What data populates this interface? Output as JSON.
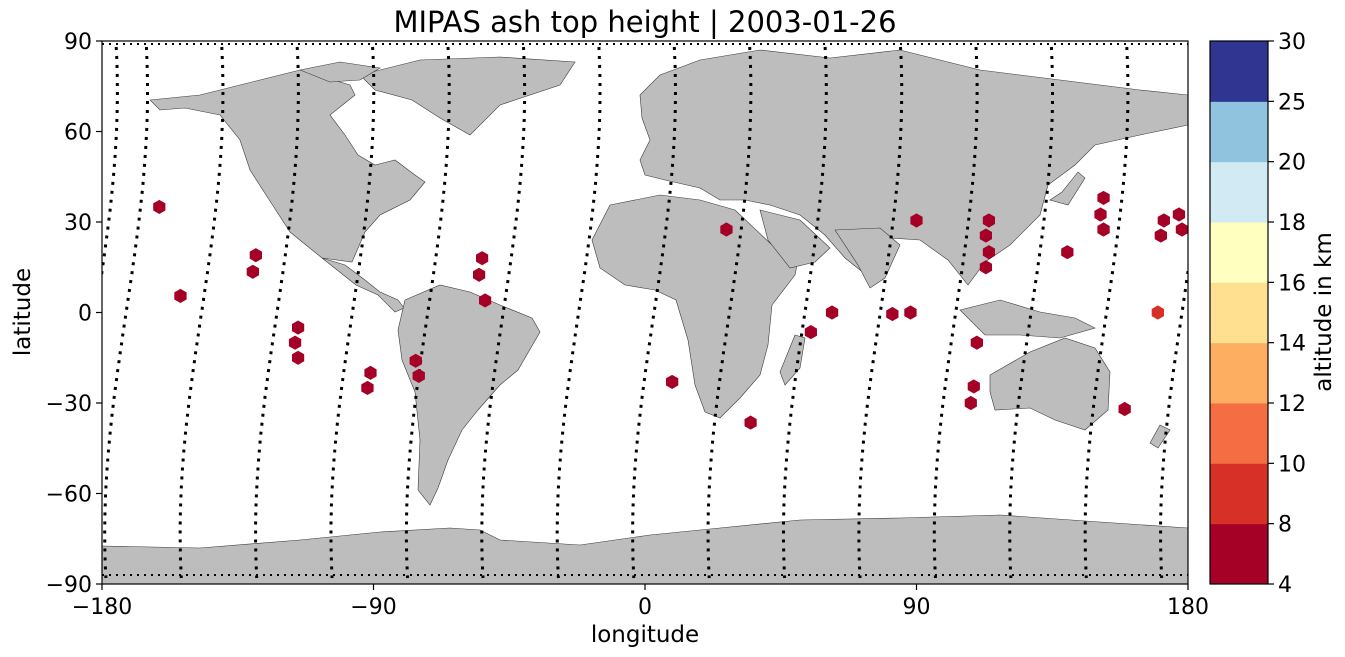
{
  "title": "MIPAS ash top height | 2003-01-26",
  "xlabel": "longitude",
  "ylabel": "latitude",
  "colorbar": {
    "label": "altitude in km",
    "ticks": [
      "4",
      "8",
      "10",
      "12",
      "14",
      "16",
      "18",
      "20",
      "25",
      "30"
    ],
    "colors": [
      "#a50026",
      "#d73027",
      "#f46d43",
      "#fdae61",
      "#fee090",
      "#ffffbf",
      "#e0f3f8",
      "#abd9e9",
      "#74add1",
      "#4575b4",
      "#313695"
    ],
    "bands": [
      {
        "from": 4,
        "to": 8,
        "color": "#a50026"
      },
      {
        "from": 8,
        "to": 10,
        "color": "#d73027"
      },
      {
        "from": 10,
        "to": 12,
        "color": "#f46d43"
      },
      {
        "from": 12,
        "to": 14,
        "color": "#fdae61"
      },
      {
        "from": 14,
        "to": 16,
        "color": "#fee090"
      },
      {
        "from": 16,
        "to": 18,
        "color": "#ffffbf"
      },
      {
        "from": 18,
        "to": 20,
        "color": "#d1eaf3"
      },
      {
        "from": 20,
        "to": 25,
        "color": "#8fc3de"
      },
      {
        "from": 25,
        "to": 30,
        "color": "#2f3590"
      }
    ]
  },
  "chart_data": {
    "type": "scatter",
    "title": "MIPAS ash top height | 2003-01-26",
    "xlabel": "longitude",
    "ylabel": "latitude",
    "xlim": [
      -180,
      180
    ],
    "ylim": [
      -90,
      90
    ],
    "xticks": [
      -180,
      -90,
      0,
      90,
      180
    ],
    "xtick_labels": [
      "−180",
      "−90",
      "0",
      "90",
      "180"
    ],
    "yticks": [
      -90,
      -60,
      -30,
      0,
      30,
      60,
      90
    ],
    "ytick_labels": [
      "−90",
      "−60",
      "−30",
      "0",
      "30",
      "60",
      "90"
    ],
    "land_color": "#bdbdbd",
    "track_color": "#000000",
    "ash_points": [
      {
        "lon": -161,
        "lat": 35,
        "alt": 6
      },
      {
        "lon": -154,
        "lat": 5.5,
        "alt": 6
      },
      {
        "lon": -129,
        "lat": 19,
        "alt": 6
      },
      {
        "lon": -130,
        "lat": 13.5,
        "alt": 6
      },
      {
        "lon": -115,
        "lat": -5,
        "alt": 6
      },
      {
        "lon": -116,
        "lat": -10,
        "alt": 6
      },
      {
        "lon": -115,
        "lat": -15,
        "alt": 6
      },
      {
        "lon": -91,
        "lat": -20,
        "alt": 6
      },
      {
        "lon": -92,
        "lat": -25,
        "alt": 6
      },
      {
        "lon": -76,
        "lat": -16,
        "alt": 6
      },
      {
        "lon": -75,
        "lat": -21,
        "alt": 6
      },
      {
        "lon": -54,
        "lat": 18,
        "alt": 6
      },
      {
        "lon": -55,
        "lat": 12.5,
        "alt": 6
      },
      {
        "lon": -53,
        "lat": 4,
        "alt": 6
      },
      {
        "lon": 9,
        "lat": -23,
        "alt": 6
      },
      {
        "lon": 27,
        "lat": 27.5,
        "alt": 6
      },
      {
        "lon": 35,
        "lat": -36.5,
        "alt": 6
      },
      {
        "lon": 55,
        "lat": -6.5,
        "alt": 6
      },
      {
        "lon": 62,
        "lat": 0,
        "alt": 6
      },
      {
        "lon": 82,
        "lat": -0.5,
        "alt": 6
      },
      {
        "lon": 88,
        "lat": 0,
        "alt": 6
      },
      {
        "lon": 90,
        "lat": 30.5,
        "alt": 6
      },
      {
        "lon": 110,
        "lat": -10,
        "alt": 6
      },
      {
        "lon": 108,
        "lat": -30,
        "alt": 6
      },
      {
        "lon": 109,
        "lat": -24.5,
        "alt": 6
      },
      {
        "lon": 114,
        "lat": 30.5,
        "alt": 6
      },
      {
        "lon": 113,
        "lat": 25.5,
        "alt": 6
      },
      {
        "lon": 114,
        "lat": 20,
        "alt": 6
      },
      {
        "lon": 113,
        "lat": 15,
        "alt": 6
      },
      {
        "lon": 140,
        "lat": 20,
        "alt": 6
      },
      {
        "lon": 152,
        "lat": 38,
        "alt": 6
      },
      {
        "lon": 151,
        "lat": 32.5,
        "alt": 6
      },
      {
        "lon": 152,
        "lat": 27.5,
        "alt": 6
      },
      {
        "lon": 159,
        "lat": -32,
        "alt": 6
      },
      {
        "lon": 170,
        "lat": 0,
        "alt": 9
      },
      {
        "lon": 171,
        "lat": 25.5,
        "alt": 6
      },
      {
        "lon": 172,
        "lat": 30.5,
        "alt": 6
      },
      {
        "lon": 177,
        "lat": 32.5,
        "alt": 6
      },
      {
        "lon": 178,
        "lat": 27.5,
        "alt": 6
      }
    ],
    "orbit_nodes_lon": [
      -172,
      -147,
      -122,
      -97,
      -72,
      -47,
      -22,
      3,
      28,
      53,
      78,
      103,
      128,
      153,
      178
    ]
  }
}
